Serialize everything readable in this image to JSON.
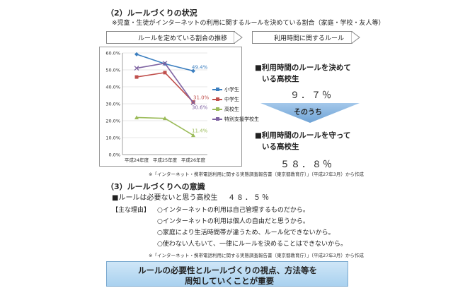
{
  "heading2": "（2）ルールづくりの状況",
  "note_children": "※児童・生徒がインターネットの利用に関するルールを決めている割合（家庭・学校・友人等）",
  "chart_caption": "ルールを定めている割合の推移",
  "right_caption": "利用時間に関するルール",
  "chart_data": {
    "type": "line",
    "categories": [
      "平成24年度",
      "平成25年度",
      "平成26年度"
    ],
    "ylim": [
      0,
      60
    ],
    "yticks": [
      "0.0%",
      "10.0%",
      "20.0%",
      "30.0%",
      "40.0%",
      "50.0%",
      "60.0%"
    ],
    "series": [
      {
        "name": "小学生",
        "values": [
          59.2,
          53.6,
          49.4
        ],
        "color": "#3c7fc0",
        "marker": "diamond",
        "end_label": "49.4%"
      },
      {
        "name": "中学生",
        "values": [
          45.8,
          48.4,
          31.0
        ],
        "color": "#c0504d",
        "marker": "square",
        "end_label": "31.0%"
      },
      {
        "name": "高校生",
        "values": [
          21.9,
          21.4,
          11.4
        ],
        "color": "#9bbb59",
        "marker": "triangle",
        "end_label": "11.4%"
      },
      {
        "name": "特別支援学校生",
        "values": [
          51.0,
          53.9,
          30.6
        ],
        "color": "#7e62a1",
        "marker": "x",
        "end_label": "30.6%"
      }
    ]
  },
  "stat1_label_a": "■利用時間のルールを決めて",
  "stat1_label_b": "いる高校生",
  "stat1_value": "９．７％",
  "arrow_label": "そのうち",
  "stat2_label_a": "■利用時間のルールを守って",
  "stat2_label_b": "いる高校生",
  "stat2_value": "５８．８％",
  "source1": "※「インターネット・携帯電話利用に関する実態調査報告書（東京都教育庁）」（平成27年3月）から作成",
  "heading3": "（3）ルールづくりへの意識",
  "stat3_label": "■ルールは必要ないと思う高校生",
  "stat3_value": "４８．５％",
  "reasons_title": "【主な理由】",
  "reasons": [
    "○インターネットの利用は自己管理するものだから。",
    "○インターネットの利用は個人の自由だと思うから。",
    "○家庭により生活時間帯が違うため、ルール化できないから。",
    "○使わない人もいて、一律にルールを決めることはできないから。"
  ],
  "source2": "※「インターネット・携帯電話利用に関する実態調査報告書（東京都教育庁）」（平成27年3月）から作成",
  "banner_line1": "ルールの必要性とルールづくりの視点、方法等を",
  "banner_line2": "周知していくことが重要"
}
